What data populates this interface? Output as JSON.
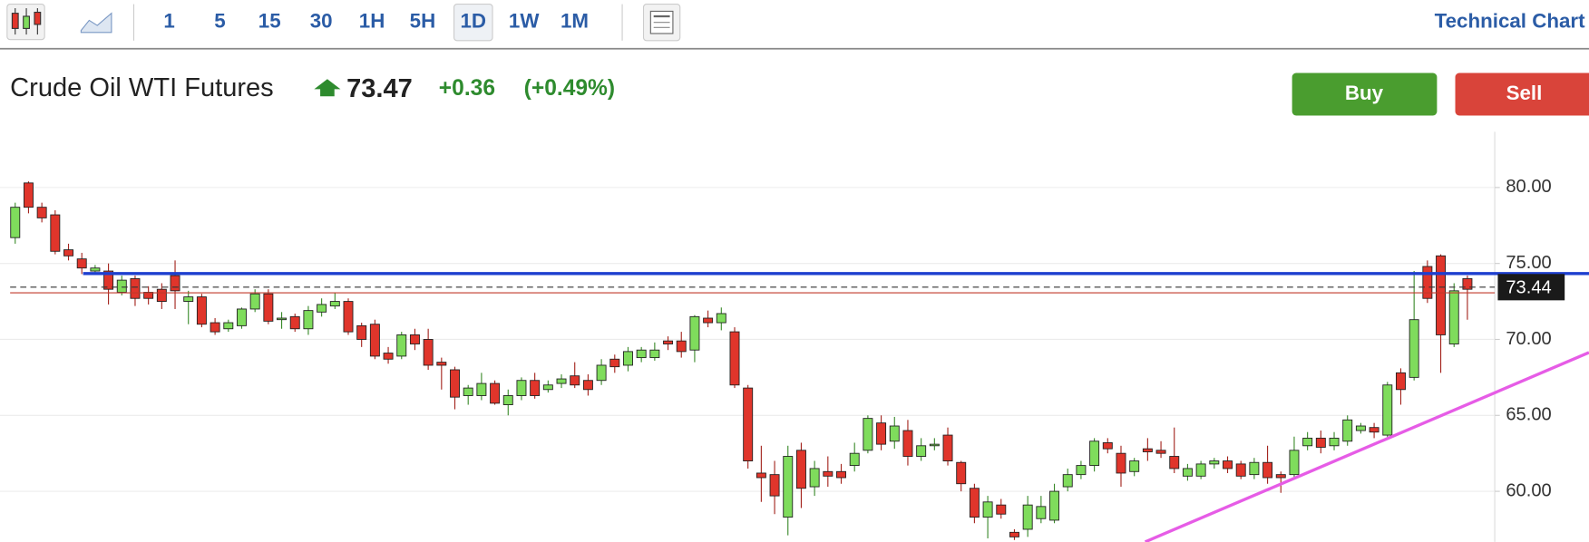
{
  "toolbar": {
    "intervals": [
      "1",
      "5",
      "15",
      "30",
      "1H",
      "5H",
      "1D",
      "1W",
      "1M"
    ],
    "active_interval": "1D",
    "link": "Technical Chart"
  },
  "instrument": {
    "name": "Crude Oil WTI Futures",
    "price": 73.47,
    "change": "+0.36",
    "change_percent": "(+0.49%)"
  },
  "buttons": [
    "Buy",
    "Sell"
  ],
  "chart_data": {
    "type": "candlestick",
    "up_color": "#7fdc5c",
    "down_color": "#e0352b",
    "ylim": [
      56.67,
      83.67
    ],
    "yticks": [
      {
        "value": 60,
        "label": "60.00"
      },
      {
        "value": 65,
        "label": "65.00"
      },
      {
        "value": 70,
        "label": "70.00"
      },
      {
        "value": 75,
        "label": "75.00"
      },
      {
        "value": 80,
        "label": "80.00"
      }
    ],
    "grid": true,
    "last_price": 73.44,
    "open": [
      76.7,
      80.3,
      78.7,
      78.2,
      75.9,
      75.3,
      74.5,
      74.5,
      73.1,
      74.0,
      73.1,
      73.3,
      74.2,
      72.5,
      72.8,
      71.1,
      70.7,
      70.9,
      72.0,
      73.0,
      71.3,
      71.5,
      70.7,
      71.8,
      72.2,
      72.5,
      70.9,
      71.0,
      69.1,
      68.9,
      70.3,
      70.0,
      68.5,
      68.0,
      66.3,
      66.3,
      67.1,
      65.7,
      66.3,
      67.3,
      66.7,
      67.1,
      67.6,
      67.3,
      67.3,
      68.7,
      68.3,
      68.8,
      68.8,
      69.9,
      69.9,
      69.3,
      71.4,
      71.1,
      70.5,
      66.8,
      61.2,
      61.1,
      58.3,
      62.7,
      60.3,
      61.3,
      61.3,
      61.7,
      62.7,
      64.5,
      63.3,
      64.0,
      62.3,
      63.0,
      63.7,
      61.9,
      60.2,
      58.3,
      59.1,
      57.3,
      57.5,
      58.2,
      58.1,
      60.3,
      61.1,
      61.7,
      63.2,
      62.5,
      61.3,
      62.8,
      62.7,
      62.3,
      61.0,
      61.0,
      61.8,
      62.0,
      61.8,
      61.1,
      61.9,
      61.1,
      61.1,
      63.0,
      63.5,
      63.0,
      63.3,
      64.0,
      64.2,
      63.7,
      67.8,
      67.5,
      74.8,
      75.5,
      69.7,
      74.0
    ],
    "high": [
      79.0,
      80.4,
      79.0,
      78.5,
      76.3,
      75.7,
      74.9,
      75.0,
      74.2,
      74.2,
      73.5,
      73.7,
      75.2,
      73.2,
      73.0,
      71.4,
      71.3,
      72.1,
      73.3,
      73.3,
      71.8,
      71.7,
      72.2,
      72.7,
      73.1,
      72.7,
      71.1,
      71.3,
      69.5,
      70.5,
      70.7,
      70.7,
      68.8,
      68.2,
      67.0,
      67.8,
      67.3,
      66.7,
      67.5,
      67.8,
      67.3,
      67.7,
      68.5,
      67.7,
      68.7,
      69.0,
      69.5,
      69.5,
      69.8,
      70.2,
      70.5,
      71.6,
      71.9,
      72.1,
      70.8,
      67.0,
      63.0,
      62.0,
      63.0,
      63.2,
      62.0,
      62.3,
      61.8,
      63.2,
      65.0,
      65.0,
      64.9,
      64.7,
      63.5,
      63.5,
      64.2,
      62.0,
      60.5,
      59.7,
      59.5,
      57.5,
      59.7,
      59.7,
      60.5,
      61.5,
      62.0,
      63.5,
      63.5,
      63.0,
      62.2,
      63.5,
      63.3,
      64.2,
      61.8,
      62.0,
      62.2,
      62.3,
      62.0,
      62.2,
      63.0,
      61.3,
      63.6,
      63.9,
      64.0,
      63.9,
      65.0,
      64.5,
      64.5,
      67.2,
      68.1,
      74.5,
      75.2,
      75.6,
      73.7,
      74.2
    ],
    "low": [
      76.3,
      78.3,
      77.7,
      75.6,
      75.2,
      74.3,
      74.3,
      72.3,
      72.9,
      72.2,
      72.3,
      72.0,
      72.0,
      71.0,
      70.8,
      70.3,
      70.5,
      70.7,
      71.8,
      71.0,
      70.7,
      70.5,
      70.3,
      71.5,
      72.0,
      70.3,
      69.5,
      68.7,
      68.4,
      68.7,
      69.3,
      68.0,
      66.7,
      65.4,
      65.7,
      66.0,
      65.7,
      65.0,
      66.0,
      66.1,
      66.5,
      66.8,
      66.8,
      66.3,
      67.0,
      67.8,
      67.9,
      68.5,
      68.6,
      69.3,
      68.8,
      68.5,
      70.8,
      70.6,
      66.8,
      61.5,
      59.3,
      58.5,
      57.1,
      58.9,
      59.7,
      60.3,
      60.5,
      61.3,
      62.5,
      62.7,
      62.8,
      61.7,
      62.0,
      62.7,
      61.7,
      60.0,
      57.9,
      56.9,
      58.2,
      56.8,
      57.0,
      57.9,
      57.9,
      60.0,
      60.8,
      61.3,
      62.5,
      60.3,
      61.0,
      62.0,
      62.2,
      61.2,
      60.7,
      60.8,
      61.5,
      61.2,
      60.8,
      60.8,
      60.5,
      59.9,
      60.9,
      62.7,
      62.5,
      62.7,
      63.0,
      63.8,
      63.5,
      63.5,
      65.7,
      67.3,
      72.4,
      67.8,
      69.5,
      71.3
    ],
    "close": [
      78.7,
      78.7,
      78.0,
      75.8,
      75.5,
      74.7,
      74.7,
      73.3,
      73.9,
      72.7,
      72.7,
      72.5,
      73.2,
      72.8,
      71.0,
      70.5,
      71.1,
      72.0,
      73.0,
      71.2,
      71.4,
      70.7,
      71.9,
      72.3,
      72.5,
      70.5,
      70.0,
      68.9,
      68.7,
      70.3,
      69.7,
      68.3,
      68.3,
      66.2,
      66.8,
      67.1,
      65.8,
      66.3,
      67.3,
      66.3,
      67.0,
      67.4,
      67.0,
      66.7,
      68.3,
      68.2,
      69.2,
      69.3,
      69.3,
      69.7,
      69.2,
      71.5,
      71.1,
      71.7,
      67.0,
      62.0,
      60.9,
      59.7,
      62.3,
      60.2,
      61.5,
      61.0,
      60.9,
      62.5,
      64.8,
      63.1,
      64.3,
      62.3,
      63.0,
      63.1,
      62.0,
      60.5,
      58.3,
      59.3,
      58.5,
      57.0,
      59.1,
      59.0,
      60.0,
      61.1,
      61.7,
      63.3,
      62.8,
      61.2,
      62.0,
      62.6,
      62.5,
      61.5,
      61.5,
      61.8,
      62.0,
      61.5,
      61.0,
      61.9,
      60.9,
      60.9,
      62.7,
      63.5,
      62.9,
      63.5,
      64.7,
      64.3,
      63.9,
      67.0,
      66.7,
      71.3,
      72.7,
      70.3,
      73.2,
      73.3
    ]
  }
}
